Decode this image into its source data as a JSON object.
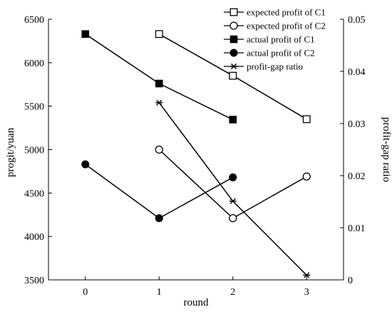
{
  "chart_data": {
    "type": "line",
    "xlabel": "round",
    "ylabel_left": "progit/yuan",
    "ylabel_right": "profit-gap ratio",
    "x_ticks": [
      "0",
      "1",
      "2",
      "3"
    ],
    "xlim": [
      -0.5,
      3.5
    ],
    "ylim_left": [
      3500,
      6500
    ],
    "y_ticks_left": [
      "3500",
      "4000",
      "4500",
      "5000",
      "5500",
      "6000",
      "6500"
    ],
    "ylim_right": [
      0,
      0.05
    ],
    "y_ticks_right": [
      "0",
      "0.01",
      "0.02",
      "0.03",
      "0.04",
      "0.05"
    ],
    "grid": false,
    "legend_position": "top-right",
    "series": [
      {
        "name": "expected profit of C1",
        "axis": "left",
        "marker": "square-open",
        "x": [
          1,
          2,
          3
        ],
        "values": [
          6330,
          5850,
          5350
        ]
      },
      {
        "name": "expected profit of C2",
        "axis": "left",
        "marker": "circle-open",
        "x": [
          1,
          2,
          3
        ],
        "values": [
          5000,
          4210,
          4690
        ]
      },
      {
        "name": "actual profit of C1",
        "axis": "left",
        "marker": "square-filled",
        "x": [
          0,
          1,
          2
        ],
        "values": [
          6330,
          5760,
          5345
        ]
      },
      {
        "name": "actual profit of C2",
        "axis": "left",
        "marker": "circle-filled",
        "x": [
          0,
          1,
          2
        ],
        "values": [
          4830,
          4210,
          4680
        ]
      },
      {
        "name": "profit-gap ratio",
        "axis": "right",
        "marker": "star",
        "x": [
          1,
          2,
          3
        ],
        "values": [
          0.034,
          0.0151,
          0.0009
        ]
      }
    ]
  }
}
